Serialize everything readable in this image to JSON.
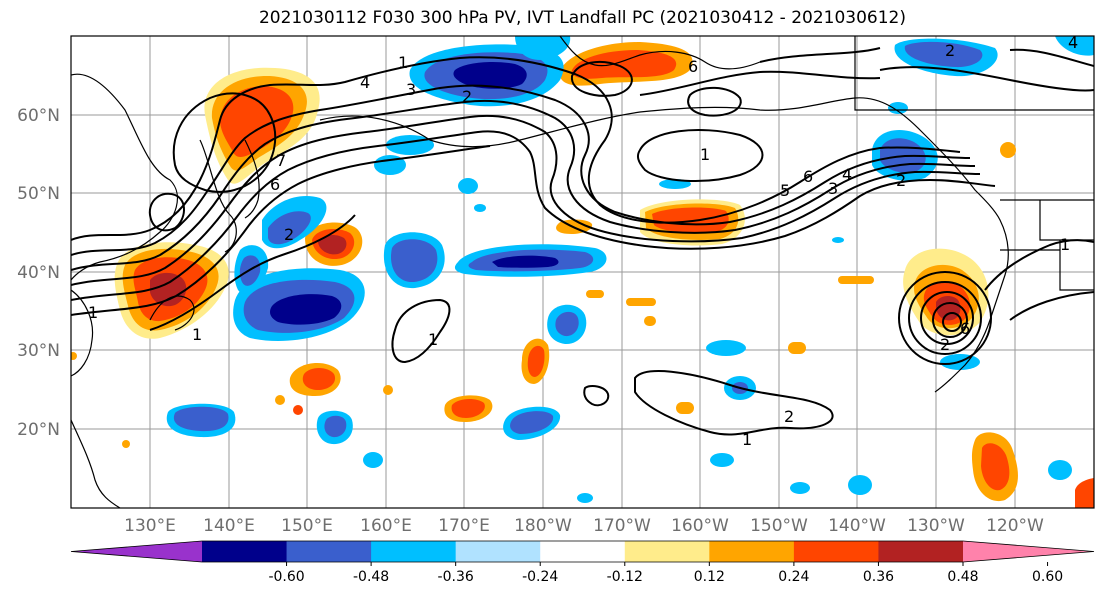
{
  "title": "2021030112 F030 300 hPa PV, IVT Landfall PC (2021030412 - 2021030612)",
  "lat_labels": [
    "60°N",
    "50°N",
    "40°N",
    "30°N",
    "20°N"
  ],
  "lon_labels": [
    "130°E",
    "140°E",
    "150°E",
    "160°E",
    "170°E",
    "180°W",
    "170°W",
    "160°W",
    "150°W",
    "140°W",
    "130°W",
    "120°W"
  ],
  "contour_labels": [
    "1",
    "2",
    "3",
    "4",
    "5",
    "6",
    "7"
  ],
  "colorbar": {
    "colors": [
      "#9932cc",
      "#00008b",
      "#3a5fcd",
      "#00bfff",
      "#b0e2ff",
      "#ffffff",
      "#ffec8b",
      "#ffa500",
      "#ff4500",
      "#b22222",
      "#ff82ab"
    ],
    "tick_labels": [
      "-0.60",
      "-0.48",
      "-0.36",
      "-0.24",
      "-0.12",
      "0.12",
      "0.24",
      "0.36",
      "0.48",
      "0.60"
    ]
  },
  "palette": {
    "blue_dark": "#00008b",
    "blue_mid": "#3a5fcd",
    "blue_light": "#00bfff",
    "blue_pale": "#b0e2ff",
    "yellow": "#ffec8b",
    "orange": "#ffa500",
    "red_orange": "#ff4500",
    "dark_red": "#b22222"
  }
}
